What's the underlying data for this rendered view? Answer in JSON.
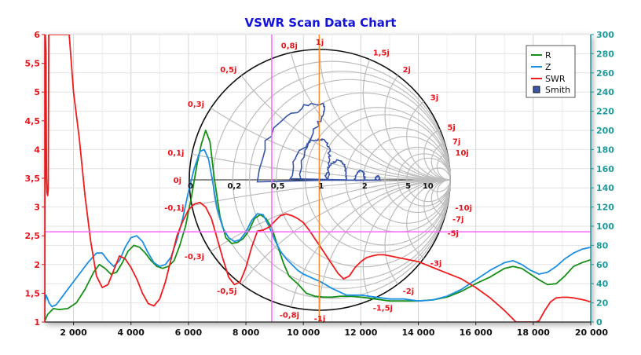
{
  "chart_data": {
    "type": "line",
    "title": "VSWR Scan Data Chart",
    "x_range": [
      1000,
      20000
    ],
    "x_ticks": [
      "2 000",
      "4 000",
      "6 000",
      "8 000",
      "10 000",
      "12 000",
      "14 000",
      "16 000",
      "18 000",
      "20 000"
    ],
    "x_tick_values": [
      2000,
      4000,
      6000,
      8000,
      10000,
      12000,
      14000,
      16000,
      18000,
      20000
    ],
    "y_left_range": [
      1,
      6
    ],
    "y_left_ticks": [
      "1",
      "1,5",
      "2",
      "2,5",
      "3",
      "3,5",
      "4",
      "4,5",
      "5",
      "5,5",
      "6"
    ],
    "y_left_tick_values": [
      1,
      1.5,
      2,
      2.5,
      3,
      3.5,
      4,
      4.5,
      5,
      5.5,
      6
    ],
    "y_right_range": [
      0,
      300
    ],
    "y_right_ticks": [
      "0",
      "20",
      "40",
      "60",
      "80",
      "100",
      "120",
      "140",
      "160",
      "180",
      "200",
      "220",
      "240",
      "260",
      "280",
      "300"
    ],
    "y_right_tick_values": [
      0,
      20,
      40,
      60,
      80,
      100,
      120,
      140,
      160,
      180,
      200,
      220,
      240,
      260,
      280,
      300
    ],
    "grid": true,
    "legend_position": "top-right",
    "legend": [
      "R",
      "Z",
      "SWR",
      "Smith"
    ],
    "colors": {
      "R": "#168f16",
      "Z": "#1b8fe0",
      "SWR": "#ee1c1c",
      "Smith": "#3a56a8",
      "marker_h": "#ff66ff",
      "marker_v1": "#ff66ff",
      "marker_v2": "#ff8c2a"
    },
    "markers": {
      "horizontal_swr": 2.57,
      "vertical_x": [
        8900,
        10550
      ]
    },
    "series": [
      {
        "name": "R",
        "axis": "right",
        "x": [
          1000,
          1100,
          1300,
          1500,
          1800,
          2100,
          2400,
          2700,
          2900,
          3100,
          3300,
          3500,
          3700,
          3900,
          4100,
          4300,
          4500,
          4700,
          4900,
          5100,
          5300,
          5500,
          5700,
          5900,
          6100,
          6300,
          6450,
          6600,
          6750,
          6900,
          7100,
          7300,
          7500,
          7700,
          7900,
          8100,
          8300,
          8500,
          8700,
          8900,
          9100,
          9300,
          9500,
          9800,
          10100,
          10400,
          10700,
          11000,
          11300,
          11600,
          12000,
          12500,
          13000,
          13500,
          14000,
          14500,
          15000,
          15500,
          16000,
          16500,
          17000,
          17300,
          17600,
          17900,
          18200,
          18500,
          18800,
          19100,
          19400,
          19700,
          20000
        ],
        "y": [
          0,
          8,
          14,
          13,
          14,
          20,
          34,
          52,
          60,
          56,
          50,
          52,
          62,
          74,
          80,
          78,
          72,
          64,
          58,
          56,
          58,
          64,
          80,
          100,
          130,
          165,
          186,
          200,
          188,
          150,
          110,
          88,
          82,
          83,
          87,
          95,
          108,
          112,
          108,
          98,
          80,
          62,
          48,
          40,
          30,
          27,
          26,
          26,
          27,
          27,
          26,
          24,
          22,
          22,
          22,
          23,
          26,
          32,
          40,
          47,
          56,
          58,
          56,
          50,
          44,
          39,
          40,
          48,
          58,
          62,
          65
        ]
      },
      {
        "name": "Z",
        "axis": "right",
        "x": [
          1000,
          1050,
          1150,
          1250,
          1400,
          1600,
          1900,
          2200,
          2500,
          2800,
          3000,
          3200,
          3400,
          3600,
          3800,
          4000,
          4200,
          4400,
          4600,
          4800,
          5000,
          5200,
          5400,
          5600,
          5800,
          6000,
          6200,
          6400,
          6550,
          6700,
          6850,
          7000,
          7200,
          7400,
          7600,
          7800,
          8000,
          8200,
          8400,
          8600,
          8800,
          9000,
          9200,
          9400,
          9600,
          9800,
          10000,
          10300,
          10600,
          11000,
          11500,
          12000,
          12500,
          13000,
          13500,
          14000,
          14500,
          15000,
          15500,
          16000,
          16500,
          17000,
          17300,
          17600,
          17900,
          18200,
          18500,
          18800,
          19100,
          19400,
          19700,
          20000
        ],
        "y": [
          20,
          28,
          20,
          16,
          18,
          26,
          38,
          50,
          62,
          72,
          72,
          64,
          58,
          64,
          78,
          88,
          90,
          84,
          72,
          62,
          58,
          60,
          68,
          86,
          108,
          136,
          160,
          178,
          180,
          170,
          145,
          118,
          98,
          88,
          84,
          86,
          94,
          106,
          113,
          112,
          100,
          86,
          74,
          66,
          60,
          54,
          50,
          46,
          42,
          35,
          28,
          28,
          26,
          24,
          24,
          22,
          23,
          27,
          34,
          44,
          54,
          62,
          64,
          60,
          54,
          50,
          52,
          58,
          66,
          72,
          76,
          78
        ]
      },
      {
        "name": "SWR",
        "axis": "left",
        "x": [
          1000,
          1020,
          1040,
          1060,
          1080,
          1100,
          1120,
          1140,
          1160,
          1200,
          1300,
          1500,
          1700,
          1850,
          2000,
          2200,
          2400,
          2600,
          2800,
          2900,
          3000,
          3200,
          3400,
          3600,
          3800,
          4000,
          4200,
          4400,
          4600,
          4800,
          5000,
          5200,
          5400,
          5600,
          5800,
          6000,
          6200,
          6400,
          6600,
          6800,
          7000,
          7200,
          7400,
          7600,
          7800,
          8000,
          8200,
          8400,
          8600,
          8800,
          9000,
          9200,
          9400,
          9600,
          9800,
          10000,
          10200,
          10400,
          10600,
          10800,
          11000,
          11200,
          11400,
          11600,
          11800,
          12000,
          12200,
          12400,
          12600,
          12800,
          13000,
          13200,
          13500,
          14000,
          14500,
          15000,
          15500,
          16000,
          16500,
          17000,
          17200,
          17400,
          17600,
          17800,
          18000,
          18100,
          18200,
          18400,
          18600,
          18800,
          19000,
          19200,
          19400,
          19600,
          19800,
          20000
        ],
        "y": [
          1,
          6,
          5.7,
          3.5,
          3.25,
          3.2,
          3.3,
          6,
          6,
          6,
          6,
          6,
          6,
          6,
          5,
          4.2,
          3.2,
          2.4,
          1.8,
          1.7,
          1.6,
          1.65,
          1.9,
          2.15,
          2.1,
          1.95,
          1.75,
          1.5,
          1.32,
          1.28,
          1.4,
          1.7,
          2.1,
          2.5,
          2.75,
          2.95,
          3.05,
          3.08,
          3.0,
          2.8,
          2.45,
          2.1,
          1.78,
          1.65,
          1.7,
          1.95,
          2.3,
          2.58,
          2.6,
          2.65,
          2.75,
          2.85,
          2.88,
          2.85,
          2.8,
          2.73,
          2.6,
          2.45,
          2.3,
          2.15,
          2.0,
          1.85,
          1.75,
          1.8,
          1.95,
          2.05,
          2.12,
          2.15,
          2.17,
          2.17,
          2.15,
          2.13,
          2.1,
          2.05,
          1.95,
          1.85,
          1.75,
          1.6,
          1.42,
          1.2,
          1.1,
          1.0,
          1.0,
          1.0,
          1.0,
          1.0,
          1.02,
          1.2,
          1.35,
          1.42,
          1.43,
          1.43,
          1.42,
          1.4,
          1.38,
          1.35
        ]
      }
    ],
    "smith": {
      "r_labels": [
        "0",
        "0,2",
        "0,5",
        "1",
        "2",
        "5",
        "10"
      ],
      "r_values": [
        0,
        0.2,
        0.5,
        1,
        2,
        5,
        10
      ],
      "x_labels": [
        "0j",
        "0,1j",
        "0,3j",
        "0,5j",
        "0,8j",
        "1j",
        "1,5j",
        "2j",
        "3j",
        "5j",
        "7j",
        "10j",
        "-0,1j",
        "-0,3j",
        "-0,5j",
        "-0,8j",
        "-1j",
        "-1,5j",
        "-2j",
        "-3j",
        "-5j",
        "-7j",
        "-10j"
      ],
      "x_values": [
        0,
        0.1,
        0.3,
        0.5,
        0.8,
        1,
        1.5,
        2,
        3,
        5,
        7,
        10,
        -0.1,
        -0.3,
        -0.5,
        -0.8,
        -1,
        -1.5,
        -2,
        -3,
        -5,
        -7,
        -10
      ]
    }
  }
}
